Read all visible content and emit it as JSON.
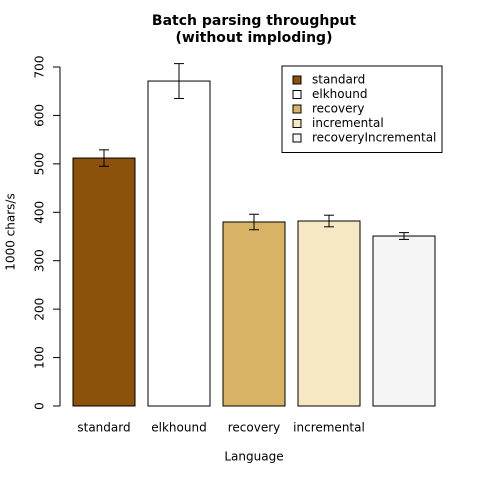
{
  "chart_data": {
    "type": "bar",
    "title": "Batch parsing throughput",
    "subtitle": "(without imploding)",
    "x_label": "Language",
    "y_label": "1000 chars/s",
    "categories": [
      "standard",
      "elkhound",
      "recovery",
      "incremental",
      "recoveryIncremental"
    ],
    "values": [
      512,
      671,
      380,
      382,
      351
    ],
    "errors": [
      17,
      36,
      16,
      12,
      7
    ],
    "colors": [
      "#8c510a",
      "#ffffff",
      "#d8b365",
      "#f6e8c3",
      "#f5f5f5"
    ],
    "ylim": [
      0,
      700
    ],
    "yticks": [
      0,
      100,
      200,
      300,
      400,
      500,
      600,
      700
    ],
    "legend": "top-right",
    "x_tick_labels": [
      "standard",
      "elkhound",
      "recovery",
      "incremental",
      null
    ]
  }
}
